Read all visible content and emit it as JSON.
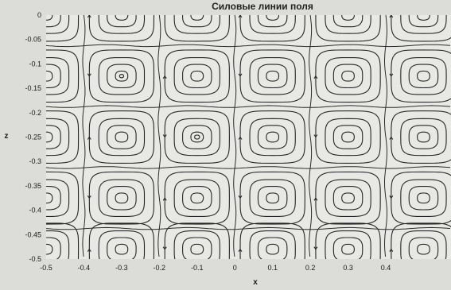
{
  "chart_data": {
    "type": "streamline",
    "title": "Силовые линии поля",
    "xlabel": "x",
    "ylabel": "z",
    "xlim": [
      -0.5,
      0.5
    ],
    "ylim": [
      -0.5,
      0
    ],
    "y_inverted": true,
    "x_ticks": [
      "-0.5",
      "-0.4",
      "-0.3",
      "-0.2",
      "-0.1",
      "0",
      "0.1",
      "0.2",
      "0.3",
      "0.4"
    ],
    "x_tick_values": [
      -0.5,
      -0.4,
      -0.3,
      -0.2,
      -0.1,
      0,
      0.1,
      0.2,
      0.3,
      0.4
    ],
    "y_ticks": [
      "0",
      "-0.05",
      "-0.1",
      "-0.15",
      "-0.2",
      "-0.25",
      "-0.3",
      "-0.35",
      "-0.4",
      "-0.45",
      "-0.5"
    ],
    "y_tick_values": [
      0,
      -0.05,
      -0.1,
      -0.15,
      -0.2,
      -0.25,
      -0.3,
      -0.35,
      -0.4,
      -0.45,
      -0.5
    ],
    "grid": false,
    "cell_columns_x": [
      -0.6,
      -0.4,
      -0.2,
      0,
      0.2,
      0.4,
      0.6
    ],
    "cell_rows_z": [
      0,
      -0.125,
      -0.25,
      -0.375,
      -0.5
    ],
    "cell_size": [
      0.2,
      0.125
    ],
    "vortex_centers": [
      {
        "x": -0.3,
        "z": -0.125
      },
      {
        "x": -0.1,
        "z": -0.125
      },
      {
        "x": 0.1,
        "z": -0.125
      },
      {
        "x": 0.3,
        "z": -0.125
      },
      {
        "x": -0.3,
        "z": -0.25
      },
      {
        "x": -0.1,
        "z": -0.25
      },
      {
        "x": 0.1,
        "z": -0.25
      },
      {
        "x": 0.3,
        "z": -0.25
      },
      {
        "x": -0.3,
        "z": -0.375
      },
      {
        "x": -0.1,
        "z": -0.375
      },
      {
        "x": 0.1,
        "z": -0.375
      },
      {
        "x": 0.3,
        "z": -0.375
      },
      {
        "x": -0.3,
        "z": -0.48
      },
      {
        "x": -0.1,
        "z": -0.48
      },
      {
        "x": 0.1,
        "z": -0.48
      },
      {
        "x": 0.3,
        "z": -0.48
      }
    ],
    "contour_levels": [
      0.15,
      0.35,
      0.55,
      0.78
    ]
  }
}
